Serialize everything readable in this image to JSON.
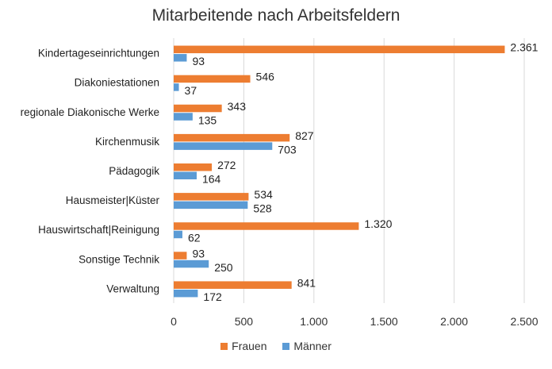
{
  "chart_data": {
    "type": "bar",
    "orientation": "horizontal",
    "title": "Mitarbeitende nach Arbeitsfeldern",
    "categories": [
      "Kindertageseinrichtungen",
      "Diakoniestationen",
      "regionale Diakonische Werke",
      "Kirchenmusik",
      "Pädagogik",
      "Hausmeister|Küster",
      "Hauswirtschaft|Reinigung",
      "Sonstige Technik",
      "Verwaltung"
    ],
    "series": [
      {
        "name": "Frauen",
        "color": "#ED7D31",
        "values": [
          2361,
          546,
          343,
          827,
          272,
          534,
          1320,
          93,
          841
        ],
        "labels": [
          "2.361",
          "546",
          "343",
          "827",
          "272",
          "534",
          "1.320",
          "93",
          "841"
        ]
      },
      {
        "name": "Männer",
        "color": "#5B9BD5",
        "values": [
          93,
          37,
          135,
          703,
          164,
          528,
          62,
          250,
          172
        ],
        "labels": [
          "93",
          "37",
          "135",
          "703",
          "164",
          "528",
          "62",
          "250",
          "172"
        ]
      }
    ],
    "xlim": [
      0,
      2500
    ],
    "xticks": [
      0,
      500,
      1000,
      1500,
      2000,
      2500
    ],
    "xtick_labels": [
      "0",
      "500",
      "1.000",
      "1.500",
      "2.000",
      "2.500"
    ],
    "grid": "vertical",
    "legend": "bottom"
  }
}
